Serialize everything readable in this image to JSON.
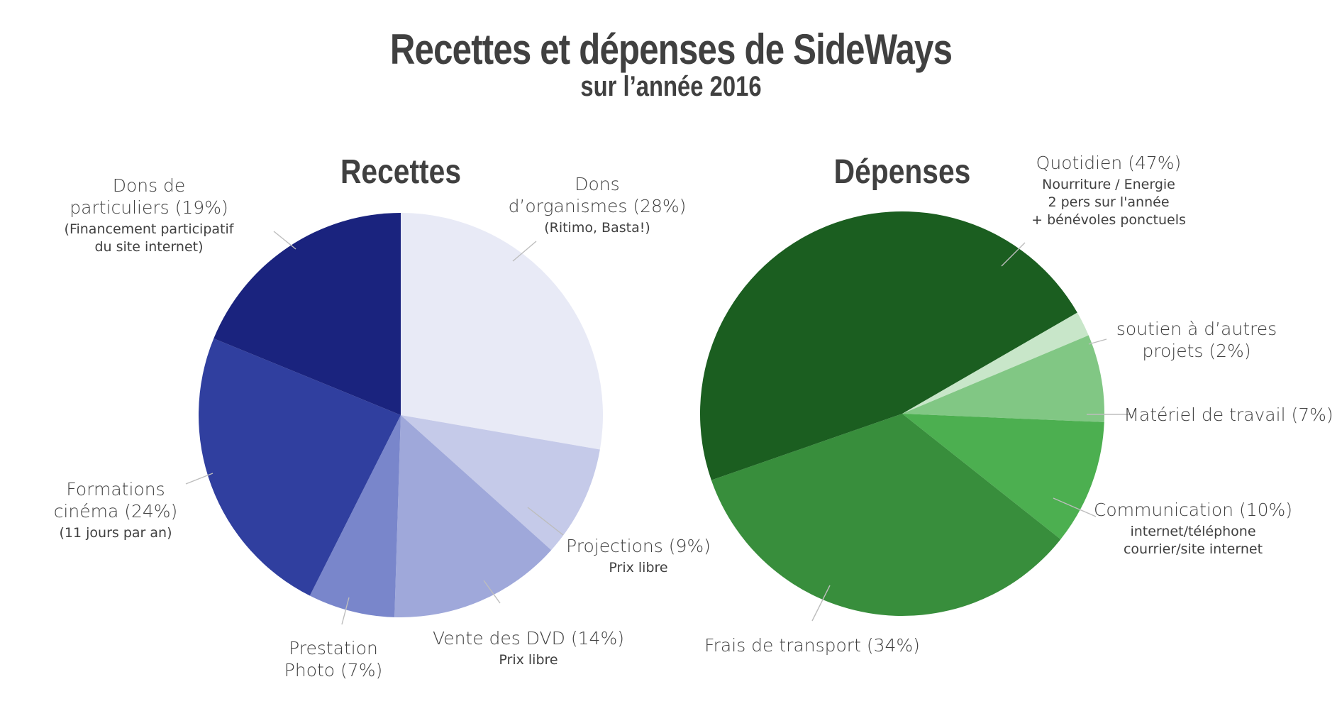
{
  "title": "Recettes et dépenses de SideWays",
  "subtitle": "sur l’année 2016",
  "chart_data": [
    {
      "type": "pie",
      "title": "Recettes",
      "slices": [
        {
          "label": "Dons d’organismes (28%)",
          "lines": [
            "Dons",
            "d’organismes (28%)"
          ],
          "sub": [
            "(Ritimo, Basta!)"
          ],
          "value": 28,
          "color": "#e8eaf6"
        },
        {
          "label": "Projections (9%)",
          "lines": [
            "Projections (9%)"
          ],
          "sub": [
            "Prix libre"
          ],
          "value": 9,
          "color": "#c5cae9"
        },
        {
          "label": "Vente des DVD (14%)",
          "lines": [
            "Vente des DVD (14%)"
          ],
          "sub": [
            "Prix libre"
          ],
          "value": 14,
          "color": "#9fa8da"
        },
        {
          "label": "Prestation Photo (7%)",
          "lines": [
            "Prestation",
            "Photo (7%)"
          ],
          "sub": [],
          "value": 7,
          "color": "#7986cb"
        },
        {
          "label": "Formations cinéma (24%)",
          "lines": [
            "Formations",
            "cinéma (24%)"
          ],
          "sub": [
            "(11 jours par an)"
          ],
          "value": 24,
          "color": "#303f9f"
        },
        {
          "label": "Dons de particuliers (19%)",
          "lines": [
            "Dons de",
            "particuliers (19%)"
          ],
          "sub": [
            "(Financement participatif",
            "du site internet)"
          ],
          "value": 19,
          "color": "#1a237e"
        }
      ]
    },
    {
      "type": "pie",
      "title": "Dépenses",
      "slices": [
        {
          "label": "soutien à d’autres projets (2%)",
          "lines": [
            "soutien à d’autres",
            "projets (2%)"
          ],
          "sub": [],
          "value": 2,
          "color": "#c8e6c9"
        },
        {
          "label": "Matériel de travail (7%)",
          "lines": [
            "Matériel de travail (7%)"
          ],
          "sub": [],
          "value": 7,
          "color": "#81c784"
        },
        {
          "label": "Communication (10%)",
          "lines": [
            "Communication (10%)"
          ],
          "sub": [
            "internet/téléphone",
            "courrier/site internet"
          ],
          "value": 10,
          "color": "#4caf50"
        },
        {
          "label": "Frais de transport (34%)",
          "lines": [
            "Frais de transport (34%)"
          ],
          "sub": [],
          "value": 34,
          "color": "#388e3c"
        },
        {
          "label": "Quotidien (47%)",
          "lines": [
            "Quotidien (47%)"
          ],
          "sub": [
            "Nourriture / Energie",
            "2 pers sur l'année",
            "+ bénévoles ponctuels"
          ],
          "value": 47,
          "color": "#1b5e20"
        }
      ]
    }
  ]
}
